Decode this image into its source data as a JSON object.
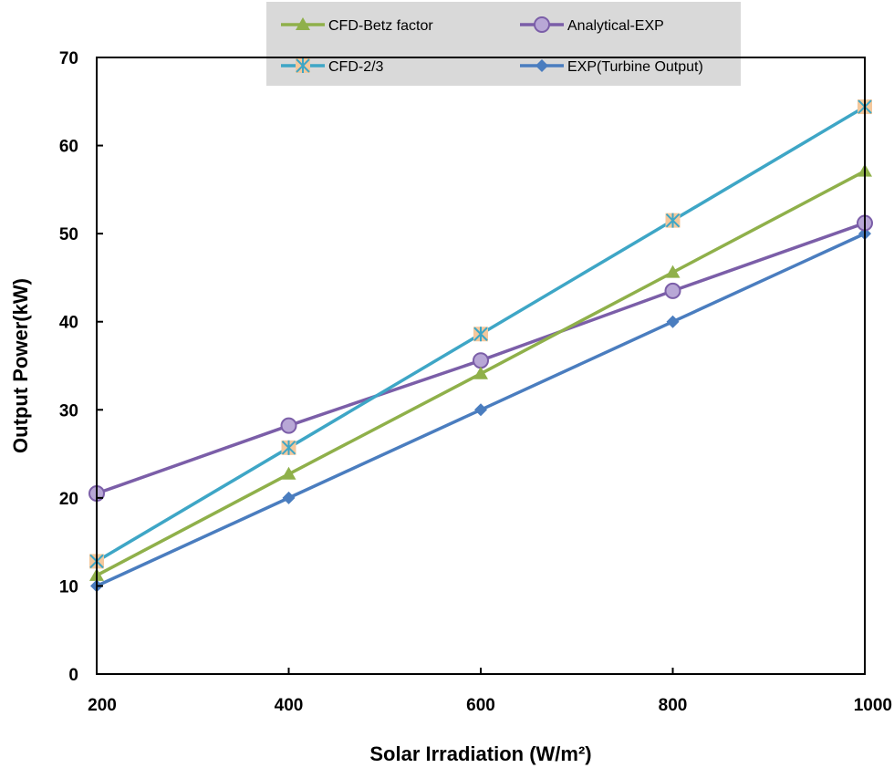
{
  "chart_data": {
    "type": "line",
    "xlabel": "Solar Irradiation (W/m²)",
    "ylabel": "Output Power(kW)",
    "x": [
      200,
      400,
      600,
      800,
      1000
    ],
    "xlim": [
      200,
      1000
    ],
    "ylim": [
      0,
      70
    ],
    "xticks": [
      200,
      400,
      600,
      800,
      1000
    ],
    "yticks": [
      0,
      10,
      20,
      30,
      40,
      50,
      60,
      70
    ],
    "grid": false,
    "legend_position": "top-center",
    "series": [
      {
        "name": "CFD-Betz factor",
        "marker": "triangle",
        "color": "#8fb04a",
        "values": [
          11.2,
          22.7,
          34.1,
          45.6,
          57.1
        ]
      },
      {
        "name": "Analytical-EXP",
        "marker": "circle",
        "color": "#7b5ea8",
        "values": [
          20.5,
          28.2,
          35.6,
          43.5,
          51.2
        ]
      },
      {
        "name": "CFD-2/3",
        "marker": "asterisk-square",
        "color": "#3ea6c6",
        "values": [
          12.8,
          25.7,
          38.6,
          51.5,
          64.4
        ]
      },
      {
        "name": "EXP(Turbine Output)",
        "marker": "diamond",
        "color": "#4a7dbf",
        "values": [
          10,
          20,
          30,
          40,
          50
        ]
      }
    ]
  }
}
